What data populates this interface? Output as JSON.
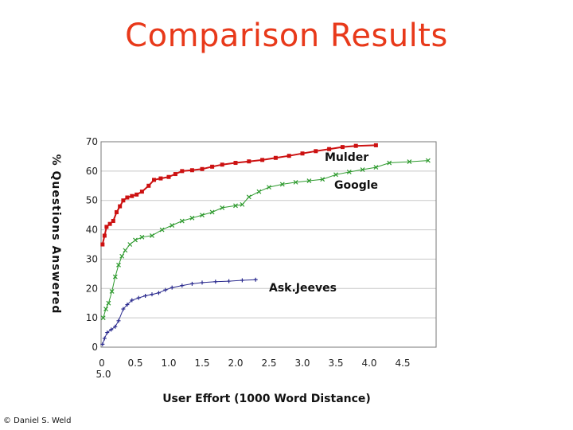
{
  "slide": {
    "title": "Comparison Results",
    "footer": "© Daniel S. Weld"
  },
  "chart_data": {
    "type": "line",
    "title": "",
    "xlabel": "User Effort (1000 Word Distance)",
    "ylabel": "% Questions Answered",
    "xlim": [
      0,
      5.0
    ],
    "ylim": [
      0,
      70
    ],
    "grid": true,
    "x_tick_labels": [
      "0",
      "0.5",
      "1.0",
      "1.5",
      "2.0",
      "2.5",
      "3.0",
      "3.5",
      "4.0",
      "4.5",
      "5.0"
    ],
    "y_tick_labels": [
      "0",
      "10",
      "20",
      "30",
      "40",
      "50",
      "60",
      "70"
    ],
    "series": [
      {
        "name": "Mulder",
        "color": "#cc1111",
        "marker": "square",
        "points": [
          [
            0.01,
            35
          ],
          [
            0.04,
            38
          ],
          [
            0.07,
            41
          ],
          [
            0.12,
            42
          ],
          [
            0.17,
            43
          ],
          [
            0.22,
            46
          ],
          [
            0.27,
            48
          ],
          [
            0.32,
            50
          ],
          [
            0.38,
            51
          ],
          [
            0.45,
            51.5
          ],
          [
            0.52,
            52
          ],
          [
            0.6,
            53
          ],
          [
            0.7,
            55
          ],
          [
            0.78,
            57
          ],
          [
            0.88,
            57.5
          ],
          [
            1.0,
            58
          ],
          [
            1.1,
            59
          ],
          [
            1.2,
            60
          ],
          [
            1.35,
            60.3
          ],
          [
            1.5,
            60.7
          ],
          [
            1.65,
            61.5
          ],
          [
            1.8,
            62.2
          ],
          [
            2.0,
            62.8
          ],
          [
            2.2,
            63.3
          ],
          [
            2.4,
            63.8
          ],
          [
            2.6,
            64.5
          ],
          [
            2.8,
            65.2
          ],
          [
            3.0,
            66
          ],
          [
            3.2,
            66.8
          ],
          [
            3.4,
            67.5
          ],
          [
            3.6,
            68.2
          ],
          [
            3.8,
            68.6
          ],
          [
            4.1,
            68.8
          ]
        ]
      },
      {
        "name": "Google",
        "color": "#2e9a2e",
        "marker": "x",
        "points": [
          [
            0.02,
            10
          ],
          [
            0.06,
            13
          ],
          [
            0.1,
            15
          ],
          [
            0.15,
            19
          ],
          [
            0.2,
            24
          ],
          [
            0.25,
            28
          ],
          [
            0.3,
            31
          ],
          [
            0.35,
            33
          ],
          [
            0.42,
            35
          ],
          [
            0.5,
            36.5
          ],
          [
            0.6,
            37.5
          ],
          [
            0.75,
            38
          ],
          [
            0.9,
            40
          ],
          [
            1.05,
            41.5
          ],
          [
            1.2,
            43
          ],
          [
            1.35,
            44
          ],
          [
            1.5,
            45
          ],
          [
            1.65,
            46
          ],
          [
            1.8,
            47.5
          ],
          [
            2.0,
            48.2
          ],
          [
            2.1,
            48.6
          ],
          [
            2.2,
            51.2
          ],
          [
            2.35,
            53
          ],
          [
            2.5,
            54.5
          ],
          [
            2.7,
            55.5
          ],
          [
            2.9,
            56.2
          ],
          [
            3.1,
            56.7
          ],
          [
            3.3,
            57.2
          ],
          [
            3.5,
            58.8
          ],
          [
            3.7,
            59.7
          ],
          [
            3.9,
            60.5
          ],
          [
            4.1,
            61.3
          ],
          [
            4.3,
            62.8
          ],
          [
            4.6,
            63.2
          ],
          [
            4.88,
            63.6
          ]
        ]
      },
      {
        "name": "Ask.Jeeves",
        "color": "#2a2a8e",
        "marker": "plus",
        "points": [
          [
            0.01,
            1
          ],
          [
            0.04,
            3
          ],
          [
            0.08,
            5
          ],
          [
            0.14,
            6
          ],
          [
            0.2,
            7
          ],
          [
            0.25,
            9
          ],
          [
            0.32,
            13
          ],
          [
            0.38,
            14.5
          ],
          [
            0.45,
            16
          ],
          [
            0.55,
            16.8
          ],
          [
            0.65,
            17.5
          ],
          [
            0.75,
            18
          ],
          [
            0.85,
            18.5
          ],
          [
            0.95,
            19.5
          ],
          [
            1.05,
            20.3
          ],
          [
            1.2,
            21
          ],
          [
            1.35,
            21.6
          ],
          [
            1.5,
            22
          ],
          [
            1.7,
            22.3
          ],
          [
            1.9,
            22.5
          ],
          [
            2.1,
            22.8
          ],
          [
            2.3,
            23
          ]
        ]
      }
    ]
  }
}
